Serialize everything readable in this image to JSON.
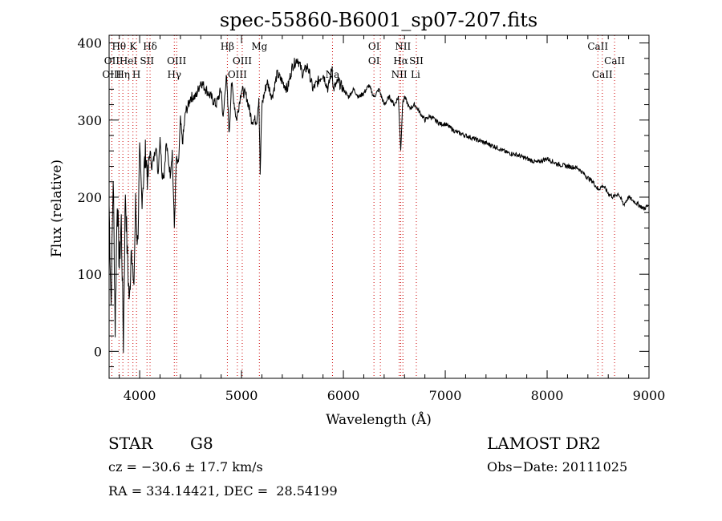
{
  "chart_data": {
    "type": "line",
    "title": "spec-55860-B6001_sp07-207.fits",
    "xlabel": "Wavelength (Å)",
    "ylabel": "Flux (relative)",
    "xlim": [
      3700,
      9000
    ],
    "ylim": [
      -35,
      410
    ],
    "x_ticks": [
      4000,
      5000,
      6000,
      7000,
      8000,
      9000
    ],
    "y_ticks": [
      0,
      100,
      200,
      300,
      400
    ],
    "grid": false,
    "line_color": "#000000",
    "marker_color": "#cc0000",
    "series": [
      {
        "x": [
          3700,
          3720,
          3740,
          3760,
          3780,
          3800,
          3820,
          3840,
          3860,
          3880,
          3900,
          3920,
          3940,
          3960,
          3980,
          4000,
          4020,
          4040,
          4060,
          4080,
          4100,
          4120,
          4140,
          4160,
          4180,
          4200,
          4220,
          4240,
          4260,
          4280,
          4300,
          4320,
          4340,
          4360,
          4380,
          4400,
          4420,
          4450,
          4480,
          4500,
          4550,
          4600,
          4650,
          4700,
          4750,
          4800,
          4820,
          4850,
          4880,
          4900,
          4950,
          5000,
          5050,
          5100,
          5150,
          5170,
          5183,
          5200,
          5250,
          5300,
          5350,
          5400,
          5450,
          5500,
          5550,
          5600,
          5650,
          5700,
          5750,
          5800,
          5850,
          5890,
          5900,
          5950,
          6000,
          6050,
          6100,
          6150,
          6200,
          6250,
          6300,
          6350,
          6400,
          6450,
          6500,
          6540,
          6563,
          6580,
          6600,
          6650,
          6700,
          6750,
          6800,
          6850,
          6900,
          6950,
          7000,
          7100,
          7200,
          7300,
          7400,
          7500,
          7600,
          7700,
          7800,
          7900,
          8000,
          8100,
          8200,
          8300,
          8400,
          8450,
          8500,
          8550,
          8600,
          8650,
          8700,
          8750,
          8800,
          8850,
          8900,
          8950,
          9000
        ],
        "y": [
          190,
          60,
          230,
          30,
          200,
          110,
          170,
          10,
          210,
          120,
          60,
          150,
          70,
          190,
          140,
          250,
          200,
          230,
          260,
          220,
          260,
          240,
          250,
          270,
          230,
          280,
          230,
          230,
          270,
          250,
          230,
          260,
          160,
          250,
          240,
          300,
          270,
          310,
          320,
          330,
          330,
          350,
          340,
          330,
          320,
          340,
          300,
          360,
          280,
          350,
          300,
          340,
          330,
          300,
          300,
          330,
          230,
          320,
          350,
          330,
          360,
          350,
          340,
          370,
          380,
          360,
          370,
          340,
          350,
          360,
          340,
          370,
          340,
          350,
          340,
          330,
          340,
          330,
          335,
          345,
          330,
          340,
          320,
          330,
          320,
          330,
          260,
          320,
          330,
          315,
          320,
          310,
          300,
          305,
          300,
          295,
          295,
          285,
          280,
          275,
          270,
          265,
          258,
          255,
          250,
          245,
          250,
          243,
          240,
          238,
          225,
          220,
          210,
          215,
          205,
          200,
          205,
          190,
          200,
          195,
          190,
          185,
          190
        ]
      }
    ],
    "line_markers": [
      {
        "label": "Hθ",
        "x": 3797,
        "row": 1
      },
      {
        "label": "OII",
        "x": 3727,
        "row": 2
      },
      {
        "label": "OIII",
        "x": 3727,
        "row": 3
      },
      {
        "label": "K",
        "x": 3934,
        "row": 1
      },
      {
        "label": "HeI",
        "x": 3889,
        "row": 2
      },
      {
        "label": "Hη",
        "x": 3835,
        "row": 3
      },
      {
        "label": "H",
        "x": 3969,
        "row": 3
      },
      {
        "label": "Hδ",
        "x": 4102,
        "row": 1
      },
      {
        "label": "SII",
        "x": 4072,
        "row": 2
      },
      {
        "label": "OIII",
        "x": 4363,
        "row": 2
      },
      {
        "label": "Hγ",
        "x": 4340,
        "row": 3
      },
      {
        "label": "Hβ",
        "x": 4861,
        "row": 1
      },
      {
        "label": "OIII",
        "x": 5007,
        "row": 2
      },
      {
        "label": "OIII",
        "x": 4959,
        "row": 3
      },
      {
        "label": "Mg",
        "x": 5175,
        "row": 1
      },
      {
        "label": "Na",
        "x": 5893,
        "row": 3
      },
      {
        "label": "OI",
        "x": 6300,
        "row": 1
      },
      {
        "label": "OI",
        "x": 6300,
        "row": 2
      },
      {
        "label": "NII",
        "x": 6584,
        "row": 1
      },
      {
        "label": "Hα",
        "x": 6563,
        "row": 2
      },
      {
        "label": "SII",
        "x": 6716,
        "row": 2
      },
      {
        "label": "NII",
        "x": 6548,
        "row": 3
      },
      {
        "label": "Li",
        "x": 6708,
        "row": 3
      },
      {
        "label": "CaII",
        "x": 8498,
        "row": 1
      },
      {
        "label": "CaII",
        "x": 8662,
        "row": 2
      },
      {
        "label": "CaII",
        "x": 8542,
        "row": 3
      }
    ],
    "marker_lines": [
      3727,
      3797,
      3835,
      3889,
      3934,
      3969,
      4072,
      4102,
      4340,
      4363,
      4861,
      4959,
      5007,
      5175,
      5893,
      6300,
      6363,
      6548,
      6563,
      6584,
      6716,
      8498,
      8542,
      8662
    ]
  },
  "info": {
    "object_type": "STAR",
    "subclass": "G8",
    "survey": "LAMOST DR2",
    "velocity": "cz = −30.6 ± 17.7 km/s",
    "obs_date": "Obs−Date: 20111025",
    "coords": "RA = 334.14421, DEC =  28.54199"
  }
}
